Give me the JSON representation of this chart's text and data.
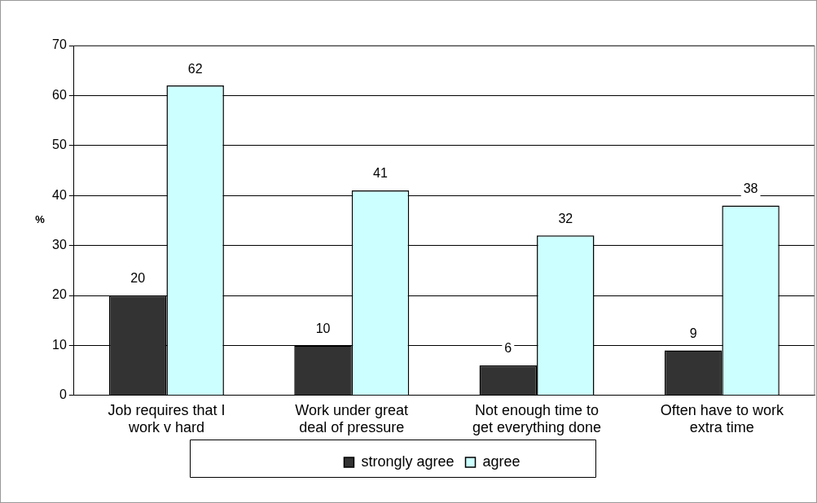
{
  "chart_data": {
    "type": "bar",
    "ylabel": "%",
    "categories": [
      "Job requires that I work v hard",
      "Work under great deal of pressure",
      "Not enough time to get everything done",
      "Often have to work extra time"
    ],
    "series": [
      {
        "name": "strongly agree",
        "color": "#333333",
        "values": [
          20,
          10,
          6,
          9
        ]
      },
      {
        "name": "agree",
        "color": "#ccffff",
        "values": [
          62,
          41,
          32,
          38
        ]
      }
    ],
    "ylim": [
      0,
      70
    ],
    "yticks": [
      0,
      10,
      20,
      30,
      40,
      50,
      60,
      70
    ],
    "grid": "y",
    "legend": "bottom",
    "data_labels": true
  }
}
